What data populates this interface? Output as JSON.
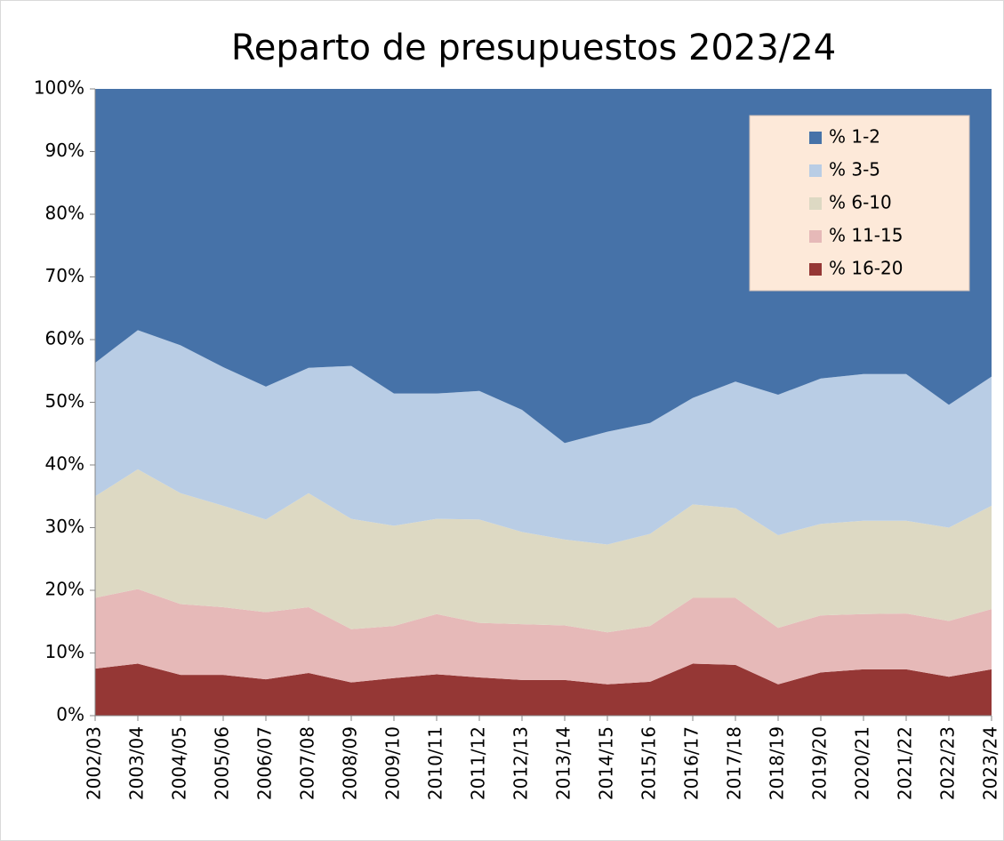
{
  "chart_data": {
    "type": "stacked_area",
    "title": "Reparto de presupuestos 2023/24",
    "categories": [
      "2002/03",
      "2003/04",
      "2004/05",
      "2005/06",
      "2006/07",
      "2007/08",
      "2008/09",
      "2009/10",
      "2010/11",
      "2011/12",
      "2012/13",
      "2013/14",
      "2014/15",
      "2015/16",
      "2016/17",
      "2017/18",
      "2018/19",
      "2019/20",
      "2020/21",
      "2021/22",
      "2022/23",
      "2023/24"
    ],
    "series": [
      {
        "name": "% 1-2",
        "color": "#4672a8",
        "values": [
          43.7,
          38.5,
          40.9,
          44.4,
          47.5,
          44.5,
          44.2,
          48.6,
          48.6,
          48.2,
          51.2,
          56.5,
          54.7,
          53.3,
          49.3,
          46.7,
          48.8,
          46.2,
          45.5,
          45.5,
          50.4,
          45.9
        ]
      },
      {
        "name": "% 3-5",
        "color": "#b9cde5",
        "values": [
          21.3,
          22.2,
          23.6,
          22.1,
          21.2,
          20,
          24.4,
          21.1,
          20,
          20.5,
          19.5,
          15.4,
          18,
          17.7,
          17,
          20.2,
          22.4,
          23.2,
          23.4,
          23.4,
          19.6,
          20.6
        ]
      },
      {
        "name": "% 6-10",
        "color": "#ddd9c3",
        "values": [
          16.2,
          19.1,
          17.7,
          16.2,
          14.8,
          18.2,
          17.6,
          16,
          15.2,
          16.5,
          14.7,
          13.7,
          14,
          14.7,
          14.9,
          14.3,
          14.8,
          14.6,
          14.9,
          14.8,
          14.9,
          16.5
        ]
      },
      {
        "name": "% 11-15",
        "color": "#e6b9b8",
        "values": [
          11.3,
          11.9,
          11.3,
          10.8,
          10.7,
          10.5,
          8.5,
          8.3,
          9.6,
          8.7,
          8.9,
          8.7,
          8.3,
          8.9,
          10.5,
          10.7,
          9,
          9.1,
          8.8,
          8.9,
          8.9,
          9.6
        ]
      },
      {
        "name": "% 16-20",
        "color": "#953735",
        "values": [
          7.5,
          8.3,
          6.5,
          6.5,
          5.8,
          6.8,
          5.3,
          6,
          6.6,
          6.1,
          5.7,
          5.7,
          5,
          5.4,
          8.3,
          8.1,
          5,
          6.9,
          7.4,
          7.4,
          6.2,
          7.4
        ]
      }
    ],
    "ylim": [
      0,
      100
    ],
    "yticks": [
      {
        "value": 0,
        "label": "0%"
      },
      {
        "value": 10,
        "label": "10%"
      },
      {
        "value": 20,
        "label": "20%"
      },
      {
        "value": 30,
        "label": "30%"
      },
      {
        "value": 40,
        "label": "40%"
      },
      {
        "value": 50,
        "label": "50%"
      },
      {
        "value": 60,
        "label": "60%"
      },
      {
        "value": 70,
        "label": "70%"
      },
      {
        "value": 80,
        "label": "80%"
      },
      {
        "value": 90,
        "label": "90%"
      },
      {
        "value": 100,
        "label": "100%"
      }
    ],
    "legend": "upper right"
  }
}
